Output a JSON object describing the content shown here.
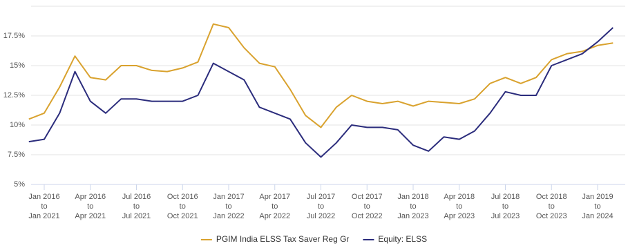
{
  "chart_data": {
    "type": "line",
    "x": [
      "2015-12",
      "2016-01",
      "2016-02",
      "2016-03",
      "2016-04",
      "2016-05",
      "2016-06",
      "2016-07",
      "2016-08",
      "2016-09",
      "2016-10",
      "2016-11",
      "2016-12",
      "2017-01",
      "2017-02",
      "2017-03",
      "2017-04",
      "2017-05",
      "2017-06",
      "2017-07",
      "2017-08",
      "2017-09",
      "2017-10",
      "2017-11",
      "2017-12",
      "2018-01",
      "2018-02",
      "2018-03",
      "2018-04",
      "2018-05",
      "2018-06",
      "2018-07",
      "2018-08",
      "2018-09",
      "2018-10",
      "2018-11",
      "2018-12",
      "2019-01",
      "2019-02"
    ],
    "series": [
      {
        "name": "PGIM India ELSS Tax Saver Reg Gr",
        "color": "#d9a22e",
        "values": [
          10.5,
          11.0,
          13.2,
          15.8,
          14.0,
          13.8,
          15.0,
          15.0,
          14.6,
          14.5,
          14.8,
          15.3,
          18.5,
          18.2,
          16.5,
          15.2,
          14.9,
          13.0,
          10.8,
          9.8,
          11.5,
          12.5,
          12.0,
          11.8,
          12.0,
          11.6,
          12.0,
          11.9,
          11.8,
          12.2,
          13.5,
          14.0,
          13.5,
          14.0,
          15.5,
          16.0,
          16.2,
          16.7,
          16.9
        ]
      },
      {
        "name": "Equity: ELSS",
        "color": "#2b2c7c",
        "values": [
          8.6,
          8.8,
          11.0,
          14.5,
          12.0,
          11.0,
          12.2,
          12.2,
          12.0,
          12.0,
          12.0,
          12.5,
          15.2,
          14.5,
          13.8,
          11.5,
          11.0,
          10.5,
          8.5,
          7.3,
          8.5,
          10.0,
          9.8,
          9.8,
          9.6,
          8.3,
          7.8,
          9.0,
          8.8,
          9.5,
          11.0,
          12.8,
          12.5,
          12.5,
          15.0,
          15.5,
          16.0,
          17.0,
          18.2
        ]
      }
    ],
    "xlim": [
      "2015-12",
      "2019-02"
    ],
    "xticks": [
      {
        "value": "2016-01",
        "label": "Jan 2016\nto\nJan 2021"
      },
      {
        "value": "2016-04",
        "label": "Apr 2016\nto\nApr 2021"
      },
      {
        "value": "2016-07",
        "label": "Jul 2016\nto\nJul 2021"
      },
      {
        "value": "2016-10",
        "label": "Oct 2016\nto\nOct 2021"
      },
      {
        "value": "2017-01",
        "label": "Jan 2017\nto\nJan 2022"
      },
      {
        "value": "2017-04",
        "label": "Apr 2017\nto\nApr 2022"
      },
      {
        "value": "2017-07",
        "label": "Jul 2017\nto\nJul 2022"
      },
      {
        "value": "2017-10",
        "label": "Oct 2017\nto\nOct 2022"
      },
      {
        "value": "2018-01",
        "label": "Jan 2018\nto\nJan 2023"
      },
      {
        "value": "2018-04",
        "label": "Apr 2018\nto\nApr 2023"
      },
      {
        "value": "2018-07",
        "label": "Jul 2018\nto\nJul 2023"
      },
      {
        "value": "2018-10",
        "label": "Oct 2018\nto\nOct 2023"
      },
      {
        "value": "2019-01",
        "label": "Jan 2019\nto\nJan 2024"
      }
    ],
    "ylim": [
      5,
      20
    ],
    "yticks": [
      {
        "value": 5,
        "label": "5%"
      },
      {
        "value": 7.5,
        "label": "7.5%"
      },
      {
        "value": 10,
        "label": "10%"
      },
      {
        "value": 12.5,
        "label": "12.5%"
      },
      {
        "value": 15,
        "label": "15%"
      },
      {
        "value": 17.5,
        "label": "17.5%"
      },
      {
        "value": 20,
        "label": ""
      }
    ],
    "grid": true,
    "legend": "bottom"
  }
}
